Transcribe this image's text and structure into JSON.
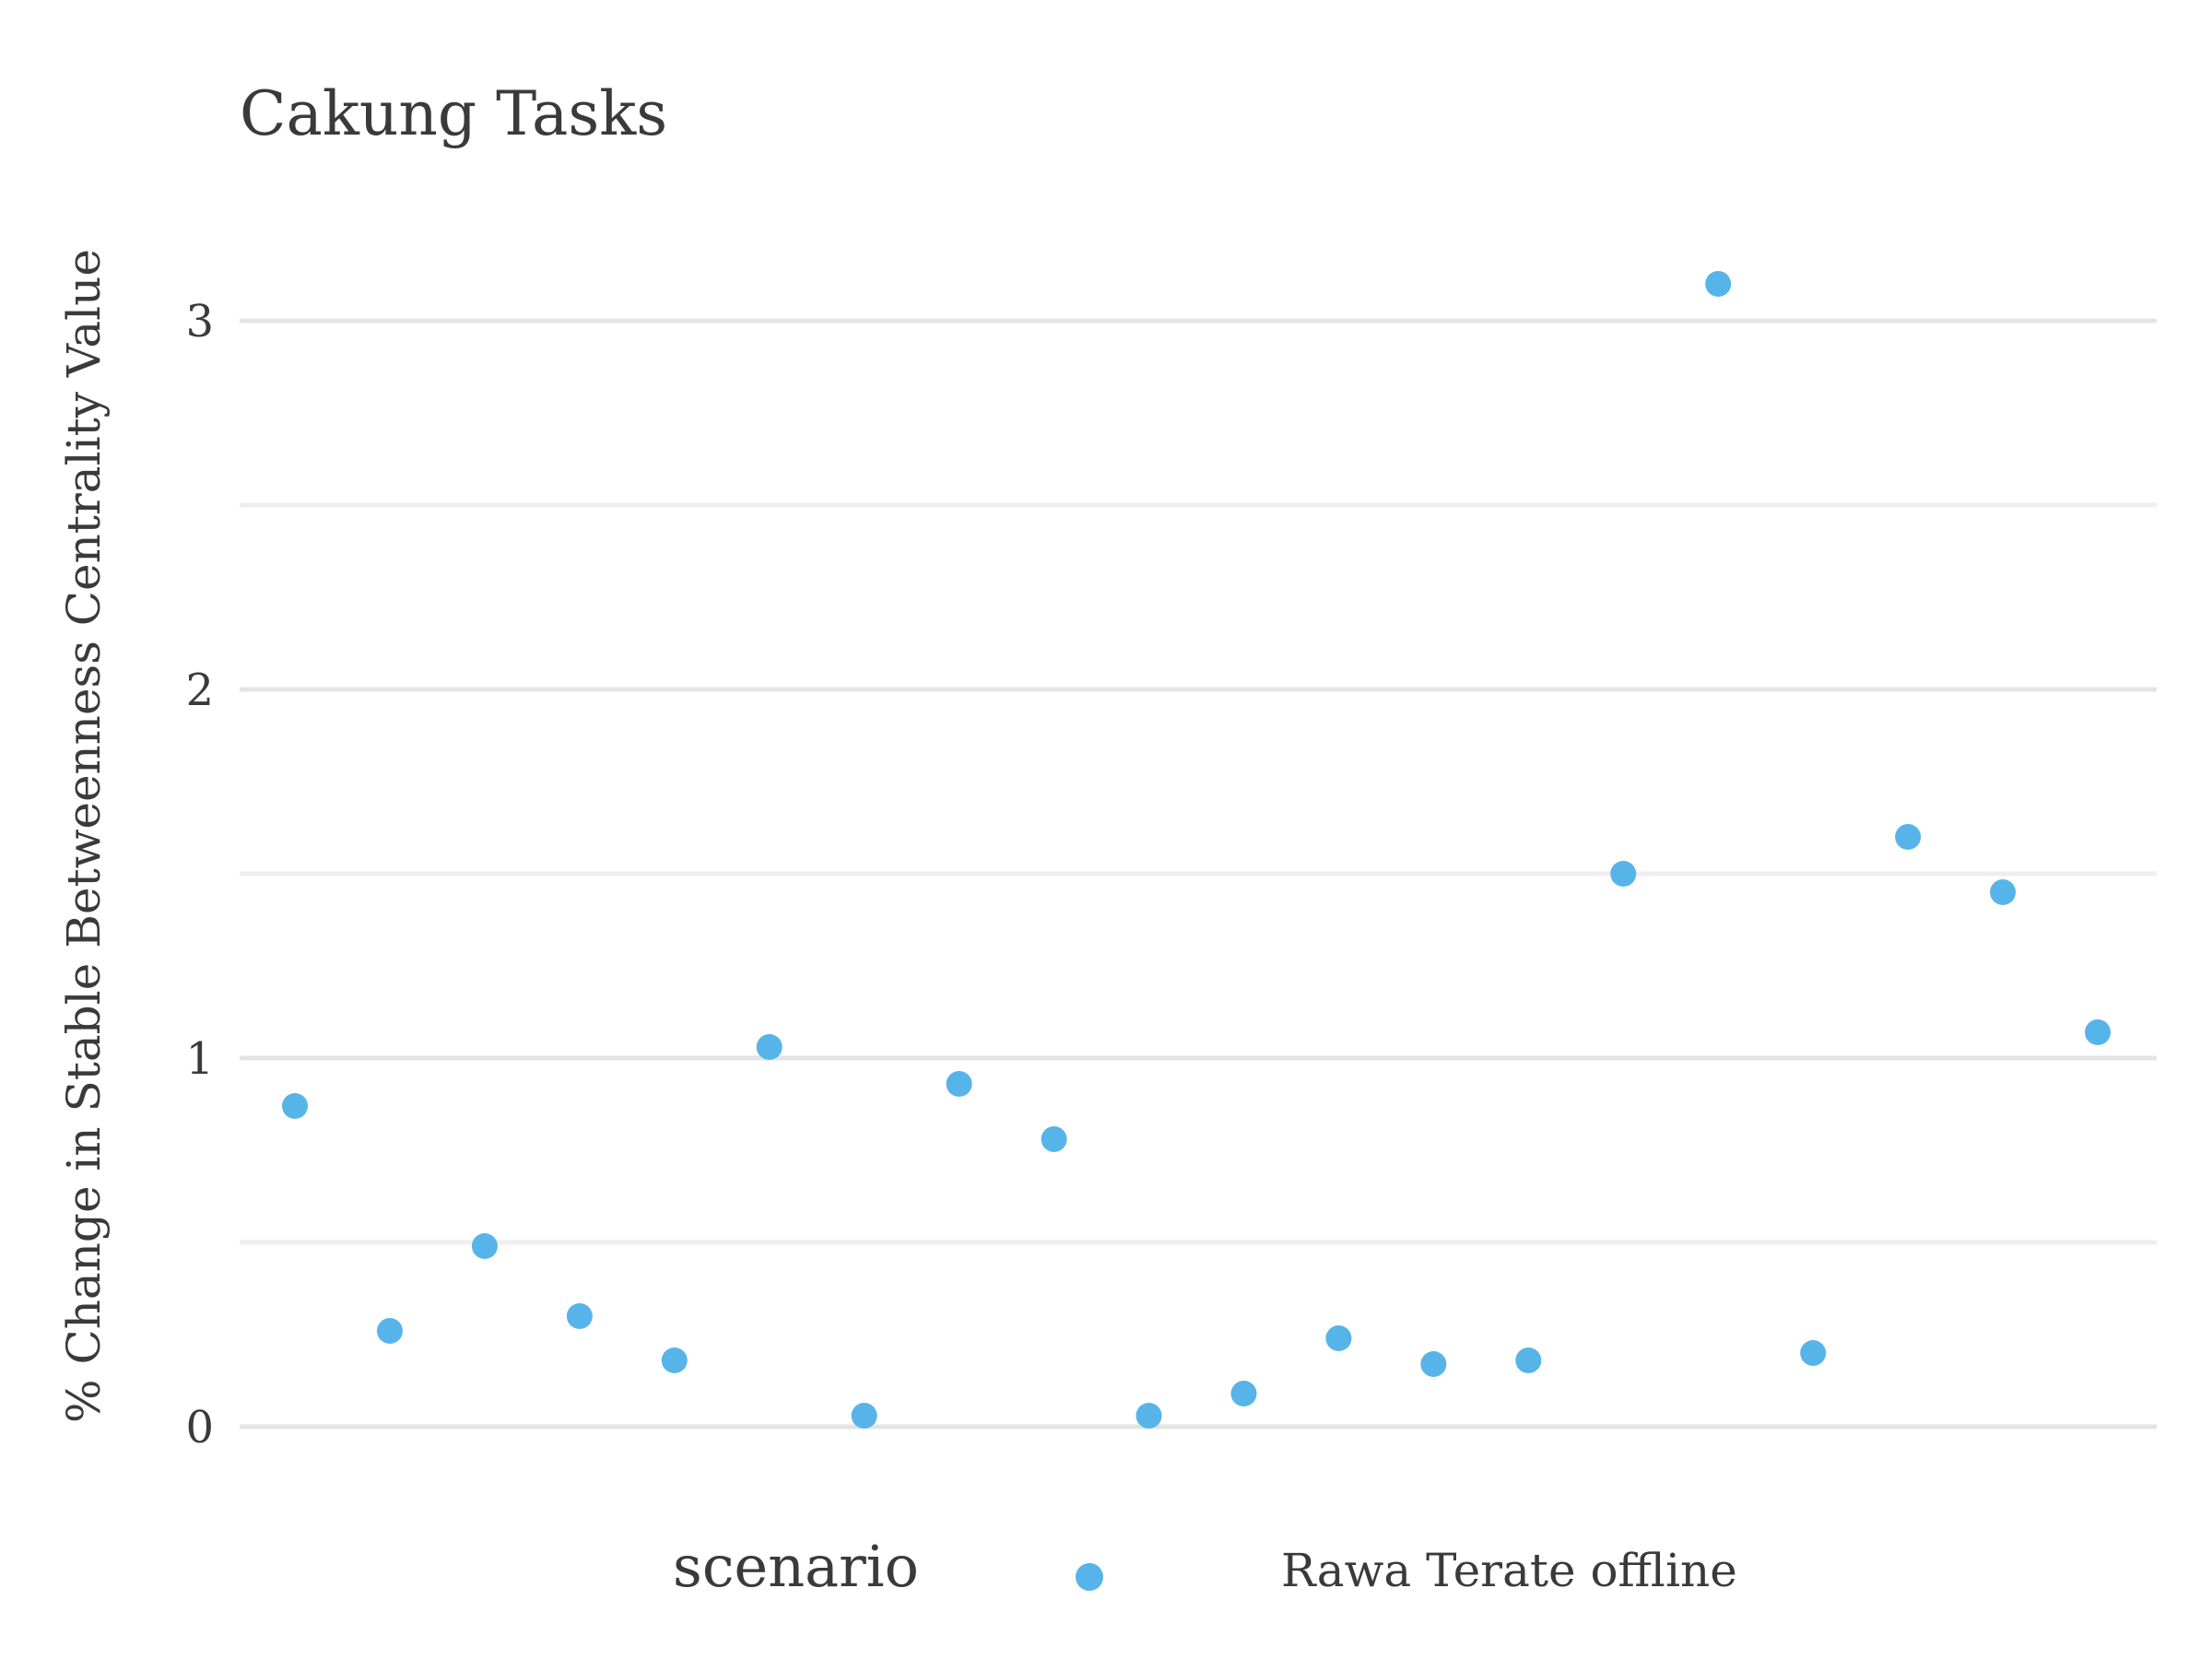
{
  "chart_data": {
    "type": "scatter",
    "title": "Cakung Tasks",
    "xlabel": "",
    "ylabel": "% Change in Stable Betweenness Centrality Value",
    "ylim": [
      -0.15,
      3.25
    ],
    "y_ticks": [
      "0",
      "1",
      "2",
      "3"
    ],
    "y_tick_values": [
      0,
      1,
      2,
      3
    ],
    "y_minor_values": [
      0.5,
      1.5,
      2.5
    ],
    "grid": true,
    "legend_position": "bottom",
    "legend": {
      "title": "scenario",
      "entries": [
        "Rawa Terate offline"
      ]
    },
    "colors": {
      "point": "#56b4e9",
      "grid_major": "#e4e4e4",
      "grid_minor": "#eeeeee",
      "text": "#3a3a3a"
    },
    "series": [
      {
        "name": "Rawa Terate offline",
        "x": [
          1,
          2,
          3,
          4,
          5,
          6,
          7,
          8,
          9,
          10,
          11,
          12,
          13,
          14,
          15,
          16,
          17,
          18,
          19,
          20
        ],
        "y": [
          0.87,
          0.26,
          0.49,
          0.3,
          0.18,
          1.03,
          0.03,
          0.93,
          0.78,
          0.03,
          0.09,
          0.24,
          0.17,
          0.18,
          1.5,
          3.1,
          0.2,
          1.6,
          1.45,
          1.07
        ]
      }
    ]
  }
}
